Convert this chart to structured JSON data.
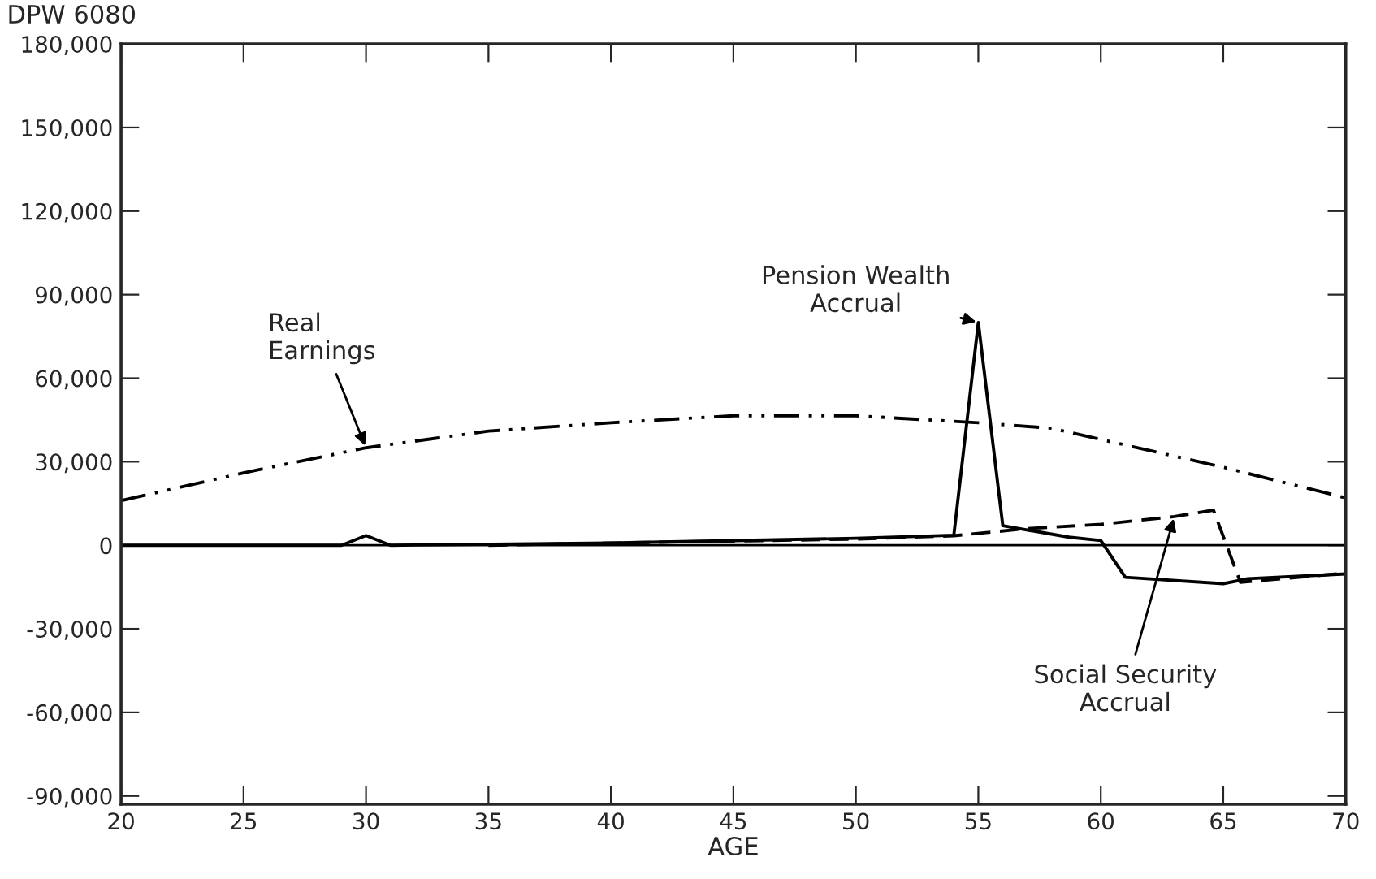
{
  "chart_data": {
    "type": "line",
    "xlabel": "AGE",
    "annotations": [
      "DPW 6080"
    ],
    "series": [
      {
        "name": "Real\nEarnings",
        "color": "#000000",
        "line_style": "dashdot",
        "x": [
          20,
          25,
          30,
          35,
          40,
          45,
          50,
          55,
          58,
          60,
          65,
          70
        ],
        "values": [
          16000,
          26000,
          35000,
          41000,
          44000,
          46500,
          46500,
          44000,
          42000,
          38000,
          28000,
          17000
        ]
      },
      {
        "name": "Pension Wealth\nAccrual",
        "color": "#000000",
        "line_style": "solid",
        "x": [
          20,
          29,
          30,
          31,
          40,
          50,
          54,
          55,
          56,
          58.7,
          60,
          61,
          65,
          66,
          70
        ],
        "values": [
          0,
          0,
          3500,
          0,
          800,
          2500,
          3600,
          80000,
          7000,
          2900,
          1700,
          -11500,
          -13800,
          -12000,
          -10300
        ]
      },
      {
        "name": "Social Security\nAccrual",
        "color": "#000000",
        "line_style": "dashed",
        "x": [
          35,
          40,
          45,
          50,
          54,
          57,
          60,
          63,
          64.6,
          65.7,
          70
        ],
        "values": [
          0,
          800,
          1500,
          2200,
          3400,
          6000,
          7500,
          10300,
          12600,
          -13300,
          -10000
        ]
      }
    ],
    "ref_lines": [
      {
        "axis": "y",
        "value": 0,
        "color": "#000000",
        "line_style": "solid"
      }
    ],
    "xlim": [
      20,
      70
    ],
    "xticks": [
      20,
      25,
      30,
      35,
      40,
      45,
      50,
      55,
      60,
      65,
      70
    ],
    "ylim": [
      -93000,
      180000
    ],
    "yticks": [
      {
        "value": -90000,
        "label": "-90,000"
      },
      {
        "value": -60000,
        "label": "-60,000"
      },
      {
        "value": -30000,
        "label": "-30,000"
      },
      0,
      {
        "value": 30000,
        "label": "30,000"
      },
      {
        "value": 60000,
        "label": "60,000"
      },
      {
        "value": 90000,
        "label": "90,000"
      },
      {
        "value": 120000,
        "label": "120,000"
      },
      {
        "value": 150000,
        "label": "150,000"
      },
      {
        "value": 180000,
        "label": "180,000"
      }
    ],
    "grid": false,
    "legend": false,
    "marker": "none"
  }
}
